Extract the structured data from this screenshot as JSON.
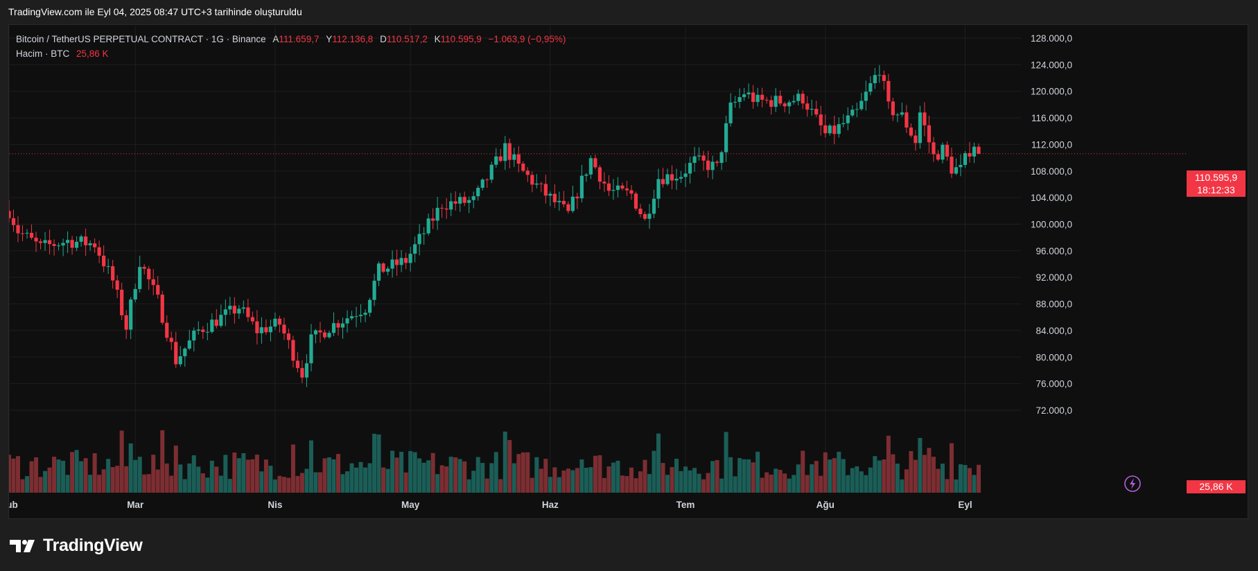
{
  "caption": "TradingView.com ile Eyl 04, 2025 08:47 UTC+3 tarihinde oluşturuldu",
  "legend": {
    "symbol_title": "Bitcoin / TetherUS PERPETUAL CONTRACT · 1G · Binance",
    "open_label": "A",
    "open_value": "111.659,7",
    "high_label": "Y",
    "high_value": "112.136,8",
    "low_label": "D",
    "low_value": "110.517,2",
    "close_label": "K",
    "close_value": "110.595,9",
    "change": "−1.063,9 (−0,95%)",
    "volume_title": "Hacim · BTC",
    "volume_value": "25,86 K"
  },
  "last_price": {
    "price": "110.595,9",
    "countdown": "18:12:33",
    "volume": "25,86 K"
  },
  "brand": "TradingView",
  "colors": {
    "up": "#22ab94",
    "down": "#f23645",
    "up_volume": "#1b5e57",
    "down_volume": "#7c2e32",
    "background": "#0f0f0f",
    "grid": "#1f1f1f"
  },
  "chart_data": {
    "type": "candlestick",
    "interval": "1D",
    "ylim": [
      68000,
      130000
    ],
    "y_ticks": [
      72000,
      76000,
      80000,
      84000,
      88000,
      92000,
      96000,
      100000,
      104000,
      108000,
      112000,
      116000,
      120000,
      124000,
      128000
    ],
    "y_tick_labels": [
      "72.000,0",
      "76.000,0",
      "80.000,0",
      "84.000,0",
      "88.000,0",
      "92.000,0",
      "96.000,0",
      "100.000,0",
      "104.000,0",
      "108.000,0",
      "112.000,0",
      "116.000,0",
      "120.000,0",
      "124.000,0",
      "128.000,0"
    ],
    "x_ticks": [
      {
        "label": "Şub",
        "date": "2025-02-01"
      },
      {
        "label": "Mar",
        "date": "2025-03-01"
      },
      {
        "label": "Nis",
        "date": "2025-04-01"
      },
      {
        "label": "May",
        "date": "2025-05-01"
      },
      {
        "label": "Haz",
        "date": "2025-06-01"
      },
      {
        "label": "Tem",
        "date": "2025-07-01"
      },
      {
        "label": "Ağu",
        "date": "2025-08-01"
      },
      {
        "label": "Eyl",
        "date": "2025-09-01"
      }
    ],
    "x_range_dates": [
      "2025-02-01",
      "2025-09-04"
    ],
    "volume_max": 100000,
    "anchors": [
      {
        "date": "2025-02-01",
        "price": 102000
      },
      {
        "date": "2025-02-03",
        "price": 99000
      },
      {
        "date": "2025-02-08",
        "price": 96500
      },
      {
        "date": "2025-02-14",
        "price": 97500
      },
      {
        "date": "2025-02-20",
        "price": 97000
      },
      {
        "date": "2025-02-24",
        "price": 91500
      },
      {
        "date": "2025-02-27",
        "price": 84500
      },
      {
        "date": "2025-03-02",
        "price": 94500
      },
      {
        "date": "2025-03-06",
        "price": 88500
      },
      {
        "date": "2025-03-10",
        "price": 79500
      },
      {
        "date": "2025-03-15",
        "price": 84000
      },
      {
        "date": "2025-03-24",
        "price": 87500
      },
      {
        "date": "2025-03-28",
        "price": 84000
      },
      {
        "date": "2025-04-02",
        "price": 85000
      },
      {
        "date": "2025-04-07",
        "price": 77500
      },
      {
        "date": "2025-04-09",
        "price": 82500
      },
      {
        "date": "2025-04-13",
        "price": 84500
      },
      {
        "date": "2025-04-21",
        "price": 87500
      },
      {
        "date": "2025-04-24",
        "price": 93000
      },
      {
        "date": "2025-04-30",
        "price": 94500
      },
      {
        "date": "2025-05-08",
        "price": 103000
      },
      {
        "date": "2025-05-15",
        "price": 103500
      },
      {
        "date": "2025-05-22",
        "price": 111500
      },
      {
        "date": "2025-05-25",
        "price": 108500
      },
      {
        "date": "2025-05-31",
        "price": 104500
      },
      {
        "date": "2025-06-05",
        "price": 101500
      },
      {
        "date": "2025-06-10",
        "price": 109800
      },
      {
        "date": "2025-06-14",
        "price": 105000
      },
      {
        "date": "2025-06-19",
        "price": 104500
      },
      {
        "date": "2025-06-22",
        "price": 100500
      },
      {
        "date": "2025-06-25",
        "price": 107000
      },
      {
        "date": "2025-06-30",
        "price": 107500
      },
      {
        "date": "2025-07-03",
        "price": 109500
      },
      {
        "date": "2025-07-08",
        "price": 108500
      },
      {
        "date": "2025-07-11",
        "price": 117500
      },
      {
        "date": "2025-07-14",
        "price": 119800
      },
      {
        "date": "2025-07-17",
        "price": 118500
      },
      {
        "date": "2025-07-23",
        "price": 118500
      },
      {
        "date": "2025-07-27",
        "price": 119000
      },
      {
        "date": "2025-08-01",
        "price": 113500
      },
      {
        "date": "2025-08-03",
        "price": 114000
      },
      {
        "date": "2025-08-08",
        "price": 116800
      },
      {
        "date": "2025-08-13",
        "price": 123500
      },
      {
        "date": "2025-08-15",
        "price": 117500
      },
      {
        "date": "2025-08-18",
        "price": 116200
      },
      {
        "date": "2025-08-21",
        "price": 112500
      },
      {
        "date": "2025-08-22",
        "price": 116800
      },
      {
        "date": "2025-08-25",
        "price": 110200
      },
      {
        "date": "2025-08-27",
        "price": 111200
      },
      {
        "date": "2025-08-29",
        "price": 108400
      },
      {
        "date": "2025-08-31",
        "price": 108200
      },
      {
        "date": "2025-09-02",
        "price": 111200
      },
      {
        "date": "2025-09-03",
        "price": 111660
      },
      {
        "date": "2025-09-04",
        "price": 110596
      }
    ]
  }
}
